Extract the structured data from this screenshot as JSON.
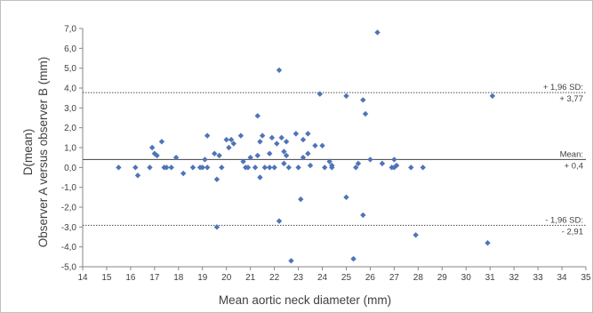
{
  "chart_data": {
    "type": "scatter",
    "xlabel": "Mean aortic neck diameter (mm)",
    "ylabel_line1": "D(mean)",
    "ylabel_line2": "Observer A versus observer B (mm)",
    "xlim": [
      14,
      35
    ],
    "ylim": [
      -5,
      7
    ],
    "x_ticks": [
      14,
      15,
      16,
      17,
      18,
      19,
      20,
      21,
      22,
      23,
      24,
      25,
      26,
      27,
      28,
      29,
      30,
      31,
      32,
      33,
      34,
      35
    ],
    "y_ticks": [
      -5,
      -4,
      -3,
      -2,
      -1,
      0,
      1,
      2,
      3,
      4,
      5,
      6,
      7
    ],
    "y_tick_labels": [
      "-5,0",
      "-4,0",
      "-3,0",
      "-2,0",
      "-1,0",
      "0,0",
      "1,0",
      "2,0",
      "3,0",
      "4,0",
      "5,0",
      "6,0",
      "7,0"
    ],
    "grid": false,
    "marker_color": "#4f74b8",
    "lines": [
      {
        "name": "upper",
        "y": 3.77,
        "style": "dotted",
        "label_top": "+ 1,96 SD:",
        "label_bottom": "+ 3,77"
      },
      {
        "name": "mean",
        "y": 0.4,
        "style": "solid",
        "label_top": "Mean:",
        "label_bottom": "+ 0,4"
      },
      {
        "name": "lower",
        "y": -2.91,
        "style": "dotted",
        "label_top": "- 1,96 SD:",
        "label_bottom": "- 2,91"
      }
    ],
    "points": [
      [
        15.5,
        0.0
      ],
      [
        16.2,
        0.0
      ],
      [
        16.3,
        -0.4
      ],
      [
        16.8,
        0.0
      ],
      [
        16.9,
        1.0
      ],
      [
        17.0,
        0.7
      ],
      [
        17.1,
        0.6
      ],
      [
        17.3,
        1.3
      ],
      [
        17.4,
        0.0
      ],
      [
        17.5,
        0.0
      ],
      [
        17.7,
        0.0
      ],
      [
        17.9,
        0.5
      ],
      [
        18.2,
        -0.3
      ],
      [
        18.6,
        0.0
      ],
      [
        18.9,
        0.0
      ],
      [
        19.0,
        0.0
      ],
      [
        19.1,
        0.4
      ],
      [
        19.2,
        1.6
      ],
      [
        19.2,
        0.0
      ],
      [
        19.5,
        0.7
      ],
      [
        19.6,
        -3.0
      ],
      [
        19.6,
        -0.6
      ],
      [
        19.7,
        0.6
      ],
      [
        19.8,
        0.0
      ],
      [
        20.0,
        1.4
      ],
      [
        20.1,
        1.0
      ],
      [
        20.2,
        1.4
      ],
      [
        20.3,
        1.2
      ],
      [
        20.6,
        1.6
      ],
      [
        20.7,
        0.3
      ],
      [
        20.8,
        0.0
      ],
      [
        20.9,
        0.0
      ],
      [
        21.0,
        0.5
      ],
      [
        21.2,
        0.0
      ],
      [
        21.3,
        0.6
      ],
      [
        21.3,
        2.6
      ],
      [
        21.4,
        1.3
      ],
      [
        21.4,
        -0.5
      ],
      [
        21.5,
        1.6
      ],
      [
        21.6,
        0.0
      ],
      [
        21.8,
        0.7
      ],
      [
        21.8,
        0.0
      ],
      [
        21.9,
        1.5
      ],
      [
        22.0,
        0.0
      ],
      [
        22.1,
        1.2
      ],
      [
        22.2,
        4.9
      ],
      [
        22.2,
        -2.7
      ],
      [
        22.3,
        1.5
      ],
      [
        22.4,
        0.8
      ],
      [
        22.4,
        0.2
      ],
      [
        22.5,
        1.3
      ],
      [
        22.5,
        0.6
      ],
      [
        22.6,
        0.0
      ],
      [
        22.7,
        -4.7
      ],
      [
        22.9,
        1.7
      ],
      [
        23.0,
        0.0
      ],
      [
        23.1,
        -1.6
      ],
      [
        23.2,
        1.4
      ],
      [
        23.2,
        0.5
      ],
      [
        23.4,
        0.7
      ],
      [
        23.4,
        1.7
      ],
      [
        23.5,
        0.1
      ],
      [
        23.7,
        1.1
      ],
      [
        23.9,
        3.7
      ],
      [
        24.0,
        1.1
      ],
      [
        24.1,
        0.0
      ],
      [
        24.3,
        0.3
      ],
      [
        24.4,
        0.1
      ],
      [
        24.4,
        0.0
      ],
      [
        25.0,
        3.6
      ],
      [
        25.0,
        -1.5
      ],
      [
        25.3,
        -4.6
      ],
      [
        25.4,
        0.0
      ],
      [
        25.5,
        0.2
      ],
      [
        25.7,
        3.4
      ],
      [
        25.7,
        -2.4
      ],
      [
        25.8,
        2.7
      ],
      [
        26.0,
        0.4
      ],
      [
        26.3,
        6.8
      ],
      [
        26.5,
        0.2
      ],
      [
        26.9,
        0.0
      ],
      [
        27.0,
        0.0
      ],
      [
        27.0,
        0.4
      ],
      [
        27.1,
        0.1
      ],
      [
        27.7,
        0.0
      ],
      [
        27.9,
        -3.4
      ],
      [
        28.2,
        0.0
      ],
      [
        30.9,
        -3.8
      ],
      [
        31.1,
        3.6
      ]
    ]
  }
}
